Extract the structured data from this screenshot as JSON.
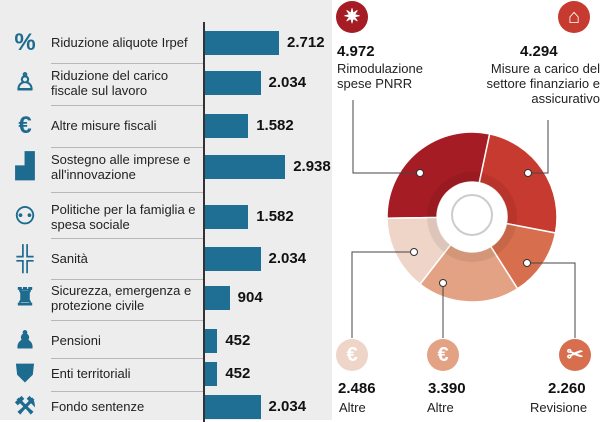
{
  "chart_data": [
    {
      "type": "bar",
      "orientation": "horizontal",
      "categories": [
        "Riduzione aliquote Irpef",
        "Riduzione del carico fiscale sul lavoro",
        "Altre misure fiscali",
        "Sostegno alle imprese e all'innovazione",
        "Politiche per la famiglia e spesa sociale",
        "Sanità",
        "Sicurezza, emergenza e protezione civile",
        "Pensioni",
        "Enti territoriali",
        "Fondo sentenze"
      ],
      "values": [
        2712,
        2034,
        1582,
        2938,
        1582,
        2034,
        904,
        452,
        452,
        2034
      ],
      "value_labels": [
        "2.712",
        "2.034",
        "1.582",
        "2.938",
        "1.582",
        "2.034",
        "904",
        "452",
        "452",
        "2.034"
      ],
      "icons": [
        "percent-icon",
        "office-worker-icon",
        "banknote-icon",
        "factory-icon",
        "family-icon",
        "health-cross-icon",
        "police-officer-icon",
        "elderly-person-icon",
        "tower-shield-icon",
        "gavel-icon"
      ],
      "bar_color": "#1f6e93"
    },
    {
      "type": "pie",
      "style": "donut",
      "slices": [
        {
          "label": "Rimodulazione spese PNRR",
          "value": 4972,
          "value_label": "4.972",
          "color": "#a51c24",
          "icon": "eu-stars-icon"
        },
        {
          "label": "Misure a carico del settore finanziario e assicurativo",
          "value": 4294,
          "value_label": "4.294",
          "color": "#c73a2f",
          "icon": "bank-icon"
        },
        {
          "label": "Revisione",
          "value": 2260,
          "value_label": "2.260",
          "color": "#d76f4e",
          "icon": "scissors-icon"
        },
        {
          "label": "Altre",
          "value": 3390,
          "value_label": "3.390",
          "color": "#e3a283",
          "icon": "euro-icon"
        },
        {
          "label": "Altre",
          "value": 2486,
          "value_label": "2.486",
          "color": "#eed5c8",
          "icon": "euro-icon"
        }
      ]
    }
  ]
}
